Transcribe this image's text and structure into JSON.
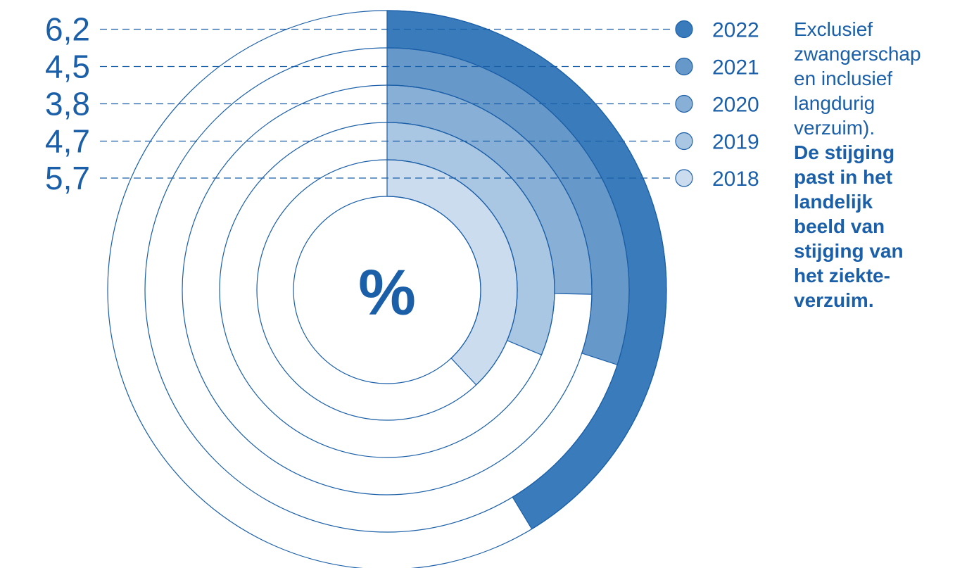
{
  "chart_data": {
    "type": "radial-bar",
    "center_label": "%",
    "scale_max": 15,
    "series": [
      {
        "year": "2022",
        "label": "6,2",
        "value": 6.2,
        "color": "#3a7bbb"
      },
      {
        "year": "2021",
        "label": "4,5",
        "value": 4.5,
        "color": "#6698c9"
      },
      {
        "year": "2020",
        "label": "3,8",
        "value": 3.8,
        "color": "#88afd6"
      },
      {
        "year": "2019",
        "label": "4,7",
        "value": 4.7,
        "color": "#a9c6e3"
      },
      {
        "year": "2018",
        "label": "5,7",
        "value": 5.7,
        "color": "#cbdcee"
      }
    ],
    "colors": {
      "line": "#1b5fa8",
      "text": "#1b5fa8"
    }
  },
  "note": {
    "text": "Exclusief\nzwangerschap\nen inclusief\nlangdurig\nverzuim).",
    "bold": "De stijging\npast in het\nlandelijk\nbeeld van\nstijging van\nhet ziekte-\nverzuim."
  }
}
